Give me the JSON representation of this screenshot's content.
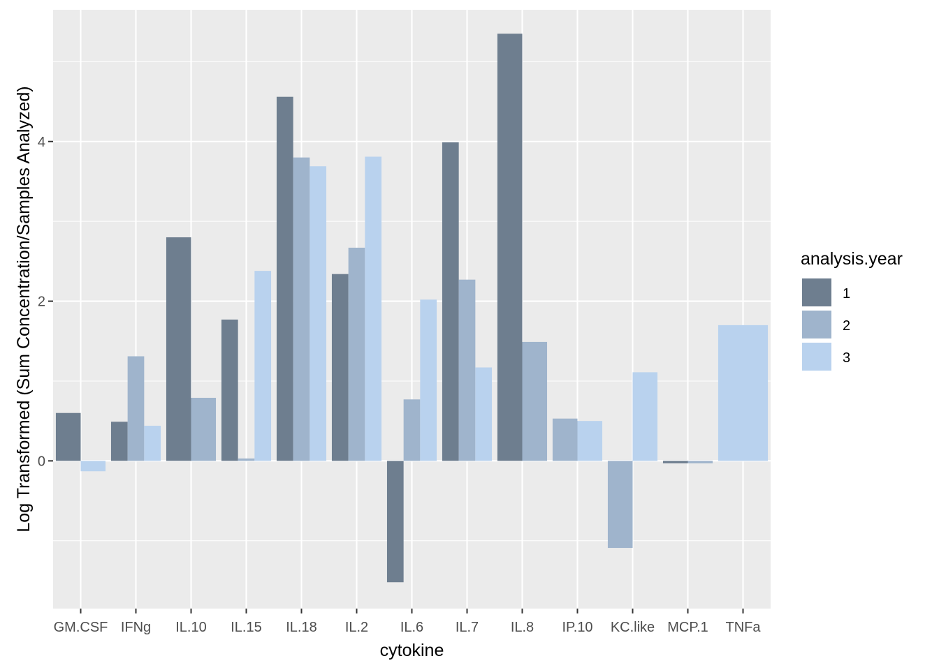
{
  "chart_data": {
    "type": "bar",
    "xlabel": "cytokine",
    "ylabel": "Log Transformed (Sum Concentration/Samples Analyzed)",
    "ylim": [
      -1.85,
      5.65
    ],
    "yticks": [
      0,
      2,
      4
    ],
    "grid": true,
    "legend": {
      "title": "analysis.year",
      "position": "right",
      "entries": [
        "1",
        "2",
        "3"
      ]
    },
    "colors": {
      "panel": "#ebebeb",
      "grid": "#ffffff",
      "tick_text": "#4d4d4d",
      "series": [
        "#6e7e8f",
        "#9fb4cc",
        "#b9d2ee"
      ]
    },
    "categories": [
      "GM.CSF",
      "IFNg",
      "IL.10",
      "IL.15",
      "IL.18",
      "IL.2",
      "IL.6",
      "IL.7",
      "IL.8",
      "IP.10",
      "KC.like",
      "MCP.1",
      "TNFa"
    ],
    "bars": [
      {
        "category": "GM.CSF",
        "values": [
          {
            "year": "1",
            "value": 0.6
          },
          {
            "year": "3",
            "value": -0.13
          }
        ]
      },
      {
        "category": "IFNg",
        "values": [
          {
            "year": "1",
            "value": 0.49
          },
          {
            "year": "2",
            "value": 1.31
          },
          {
            "year": "3",
            "value": 0.44
          }
        ]
      },
      {
        "category": "IL.10",
        "values": [
          {
            "year": "1",
            "value": 2.8
          },
          {
            "year": "2",
            "value": 0.79
          }
        ]
      },
      {
        "category": "IL.15",
        "values": [
          {
            "year": "1",
            "value": 1.77
          },
          {
            "year": "2",
            "value": 0.03
          },
          {
            "year": "3",
            "value": 2.38
          }
        ]
      },
      {
        "category": "IL.18",
        "values": [
          {
            "year": "1",
            "value": 4.56
          },
          {
            "year": "2",
            "value": 3.8
          },
          {
            "year": "3",
            "value": 3.69
          }
        ]
      },
      {
        "category": "IL.2",
        "values": [
          {
            "year": "1",
            "value": 2.34
          },
          {
            "year": "2",
            "value": 2.67
          },
          {
            "year": "3",
            "value": 3.81
          }
        ]
      },
      {
        "category": "IL.6",
        "values": [
          {
            "year": "1",
            "value": -1.52
          },
          {
            "year": "2",
            "value": 0.77
          },
          {
            "year": "3",
            "value": 2.02
          }
        ]
      },
      {
        "category": "IL.7",
        "values": [
          {
            "year": "1",
            "value": 3.99
          },
          {
            "year": "2",
            "value": 2.27
          },
          {
            "year": "3",
            "value": 1.17
          }
        ]
      },
      {
        "category": "IL.8",
        "values": [
          {
            "year": "1",
            "value": 5.35
          },
          {
            "year": "2",
            "value": 1.49
          }
        ]
      },
      {
        "category": "IP.10",
        "values": [
          {
            "year": "2",
            "value": 0.53
          },
          {
            "year": "3",
            "value": 0.5
          }
        ]
      },
      {
        "category": "KC.like",
        "values": [
          {
            "year": "2",
            "value": -1.09
          },
          {
            "year": "3",
            "value": 1.11
          }
        ]
      },
      {
        "category": "MCP.1",
        "values": [
          {
            "year": "1",
            "value": -0.03
          },
          {
            "year": "2",
            "value": -0.03
          }
        ]
      },
      {
        "category": "TNFa",
        "values": [
          {
            "year": "3",
            "value": 1.7
          }
        ]
      }
    ]
  }
}
